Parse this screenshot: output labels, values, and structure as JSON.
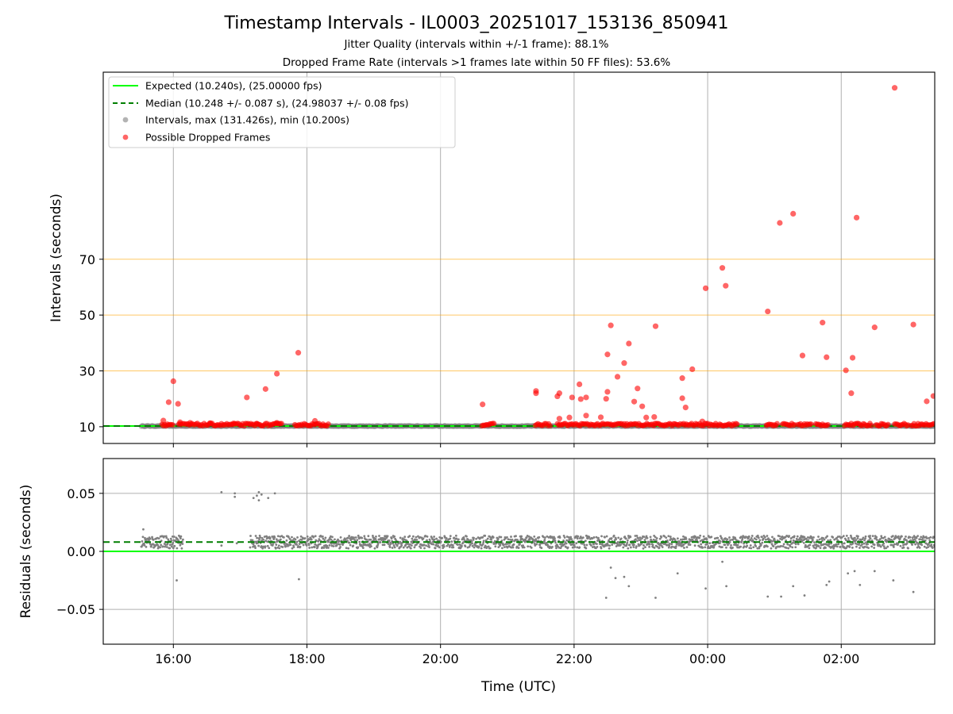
{
  "chart_data": {
    "title": "Timestamp Intervals - IL0003_20251017_153136_850941",
    "subtitle_1": "Jitter Quality (intervals within +/-1 frame): 88.1%",
    "subtitle_2": "Dropped Frame Rate (intervals >1 frames late within 50 FF files): 53.6%",
    "xlabel": "Time (UTC)",
    "x_tick_labels": [
      "16:00",
      "18:00",
      "20:00",
      "22:00",
      "00:00",
      "02:00"
    ],
    "x_tick_hours": [
      16,
      18,
      20,
      22,
      24,
      26
    ],
    "xlim_hours": [
      14.95,
      27.4
    ],
    "top": {
      "type": "scatter",
      "ylabel": "Intervals (seconds)",
      "ylim": [
        4,
        137
      ],
      "y_ticks": [
        10,
        30,
        50,
        70
      ],
      "orange_reference_lines": [
        30,
        50,
        70
      ],
      "expected_interval": 10.24,
      "median_interval": 10.248,
      "legend_position": "upper-left",
      "legend": [
        "Expected (10.240s), (25.00000 fps)",
        "Median (10.248 +/- 0.087 s), (24.98037 +/- 0.08 fps)",
        "Intervals, max (131.426s), min (10.200s)",
        "Possible Dropped Frames"
      ],
      "interval_segments_hours": [
        [
          15.52,
          27.4
        ]
      ],
      "dropped_band_segments_hours": [
        [
          15.83,
          16.0
        ],
        [
          16.08,
          17.63
        ],
        [
          17.82,
          18.33
        ],
        [
          20.62,
          20.8
        ],
        [
          21.42,
          21.65
        ],
        [
          21.75,
          23.6
        ],
        [
          23.62,
          24.2
        ],
        [
          24.22,
          24.45
        ],
        [
          24.88,
          25.05
        ],
        [
          25.12,
          25.3
        ],
        [
          25.35,
          25.55
        ],
        [
          25.62,
          25.8
        ],
        [
          26.05,
          26.45
        ],
        [
          26.52,
          26.7
        ],
        [
          26.8,
          27.0
        ],
        [
          27.05,
          27.4
        ]
      ],
      "dropped_frames": [
        {
          "t": 15.85,
          "y": 12.2
        },
        {
          "t": 15.93,
          "y": 18.8
        },
        {
          "t": 16.0,
          "y": 26.3
        },
        {
          "t": 16.07,
          "y": 18.2
        },
        {
          "t": 16.1,
          "y": 11.6
        },
        {
          "t": 16.25,
          "y": 11.4
        },
        {
          "t": 16.55,
          "y": 11.3
        },
        {
          "t": 16.9,
          "y": 11.2
        },
        {
          "t": 17.1,
          "y": 20.5
        },
        {
          "t": 17.25,
          "y": 11.1
        },
        {
          "t": 17.38,
          "y": 23.5
        },
        {
          "t": 17.55,
          "y": 29.0
        },
        {
          "t": 17.55,
          "y": 11.4
        },
        {
          "t": 17.87,
          "y": 36.5
        },
        {
          "t": 18.12,
          "y": 12.1
        },
        {
          "t": 20.63,
          "y": 18.0
        },
        {
          "t": 21.43,
          "y": 22.8
        },
        {
          "t": 21.43,
          "y": 22.0
        },
        {
          "t": 21.75,
          "y": 20.9
        },
        {
          "t": 21.78,
          "y": 22.0
        },
        {
          "t": 21.78,
          "y": 12.9
        },
        {
          "t": 21.93,
          "y": 13.3
        },
        {
          "t": 21.97,
          "y": 20.5
        },
        {
          "t": 22.08,
          "y": 25.2
        },
        {
          "t": 22.1,
          "y": 19.9
        },
        {
          "t": 22.18,
          "y": 20.5
        },
        {
          "t": 22.18,
          "y": 14.0
        },
        {
          "t": 22.4,
          "y": 13.4
        },
        {
          "t": 22.48,
          "y": 20.0
        },
        {
          "t": 22.5,
          "y": 22.5
        },
        {
          "t": 22.5,
          "y": 35.9
        },
        {
          "t": 22.55,
          "y": 46.3
        },
        {
          "t": 22.65,
          "y": 27.9
        },
        {
          "t": 22.75,
          "y": 32.8
        },
        {
          "t": 22.82,
          "y": 39.8
        },
        {
          "t": 22.9,
          "y": 19.0
        },
        {
          "t": 22.95,
          "y": 23.7
        },
        {
          "t": 23.02,
          "y": 17.3
        },
        {
          "t": 23.08,
          "y": 13.3
        },
        {
          "t": 23.2,
          "y": 13.5
        },
        {
          "t": 23.22,
          "y": 46.0
        },
        {
          "t": 23.62,
          "y": 27.4
        },
        {
          "t": 23.62,
          "y": 20.2
        },
        {
          "t": 23.67,
          "y": 16.9
        },
        {
          "t": 23.77,
          "y": 30.6
        },
        {
          "t": 23.92,
          "y": 11.9
        },
        {
          "t": 23.97,
          "y": 59.6
        },
        {
          "t": 24.22,
          "y": 66.9
        },
        {
          "t": 24.27,
          "y": 60.5
        },
        {
          "t": 24.9,
          "y": 51.3
        },
        {
          "t": 25.08,
          "y": 83.0
        },
        {
          "t": 25.28,
          "y": 86.3
        },
        {
          "t": 25.42,
          "y": 35.5
        },
        {
          "t": 25.72,
          "y": 47.3
        },
        {
          "t": 25.78,
          "y": 34.9
        },
        {
          "t": 26.07,
          "y": 30.2
        },
        {
          "t": 26.15,
          "y": 22.0
        },
        {
          "t": 26.17,
          "y": 34.7
        },
        {
          "t": 26.23,
          "y": 84.9
        },
        {
          "t": 26.5,
          "y": 45.6
        },
        {
          "t": 26.8,
          "y": 131.4
        },
        {
          "t": 27.08,
          "y": 46.6
        },
        {
          "t": 27.28,
          "y": 19.1
        },
        {
          "t": 27.38,
          "y": 21.0
        }
      ]
    },
    "bottom": {
      "type": "scatter",
      "ylabel": "Residuals (seconds)",
      "ylim": [
        -0.08,
        0.08
      ],
      "y_ticks": [
        0.05,
        0.0,
        -0.05
      ],
      "y_tick_labels": [
        "0.05",
        "0.00",
        "−0.05"
      ],
      "zero_line": 0.0,
      "median_offset": 0.008,
      "dense_band_hours": [
        [
          15.52,
          16.15
        ],
        [
          17.15,
          27.4
        ]
      ],
      "outliers": [
        {
          "t": 15.55,
          "y": 0.019
        },
        {
          "t": 16.05,
          "y": -0.025
        },
        {
          "t": 16.72,
          "y": 0.005
        },
        {
          "t": 16.72,
          "y": 0.051
        },
        {
          "t": 16.92,
          "y": 0.05
        },
        {
          "t": 16.92,
          "y": 0.047
        },
        {
          "t": 16.95,
          "y": 0.007
        },
        {
          "t": 17.2,
          "y": 0.046
        },
        {
          "t": 17.25,
          "y": 0.048
        },
        {
          "t": 17.28,
          "y": 0.051
        },
        {
          "t": 17.28,
          "y": 0.044
        },
        {
          "t": 17.32,
          "y": 0.049
        },
        {
          "t": 17.42,
          "y": 0.046
        },
        {
          "t": 17.52,
          "y": 0.05
        },
        {
          "t": 17.88,
          "y": -0.024
        },
        {
          "t": 22.48,
          "y": -0.04
        },
        {
          "t": 22.55,
          "y": -0.014
        },
        {
          "t": 22.62,
          "y": -0.023
        },
        {
          "t": 22.75,
          "y": -0.022
        },
        {
          "t": 22.82,
          "y": -0.03
        },
        {
          "t": 23.22,
          "y": -0.04
        },
        {
          "t": 23.55,
          "y": -0.019
        },
        {
          "t": 23.97,
          "y": -0.032
        },
        {
          "t": 24.22,
          "y": -0.009
        },
        {
          "t": 24.28,
          "y": -0.03
        },
        {
          "t": 24.9,
          "y": -0.039
        },
        {
          "t": 25.1,
          "y": -0.039
        },
        {
          "t": 25.28,
          "y": -0.03
        },
        {
          "t": 25.45,
          "y": -0.038
        },
        {
          "t": 25.82,
          "y": -0.026
        },
        {
          "t": 25.78,
          "y": -0.029
        },
        {
          "t": 26.1,
          "y": -0.019
        },
        {
          "t": 26.2,
          "y": -0.017
        },
        {
          "t": 26.28,
          "y": -0.029
        },
        {
          "t": 26.5,
          "y": -0.017
        },
        {
          "t": 26.78,
          "y": -0.025
        },
        {
          "t": 27.08,
          "y": -0.035
        }
      ]
    }
  },
  "colors": {
    "expected": "#00ff00",
    "median": "#007f00",
    "intervals": "#808080",
    "dropped": "#ff0000",
    "reference": "#ffa500",
    "grid": "#b0b0b0"
  }
}
